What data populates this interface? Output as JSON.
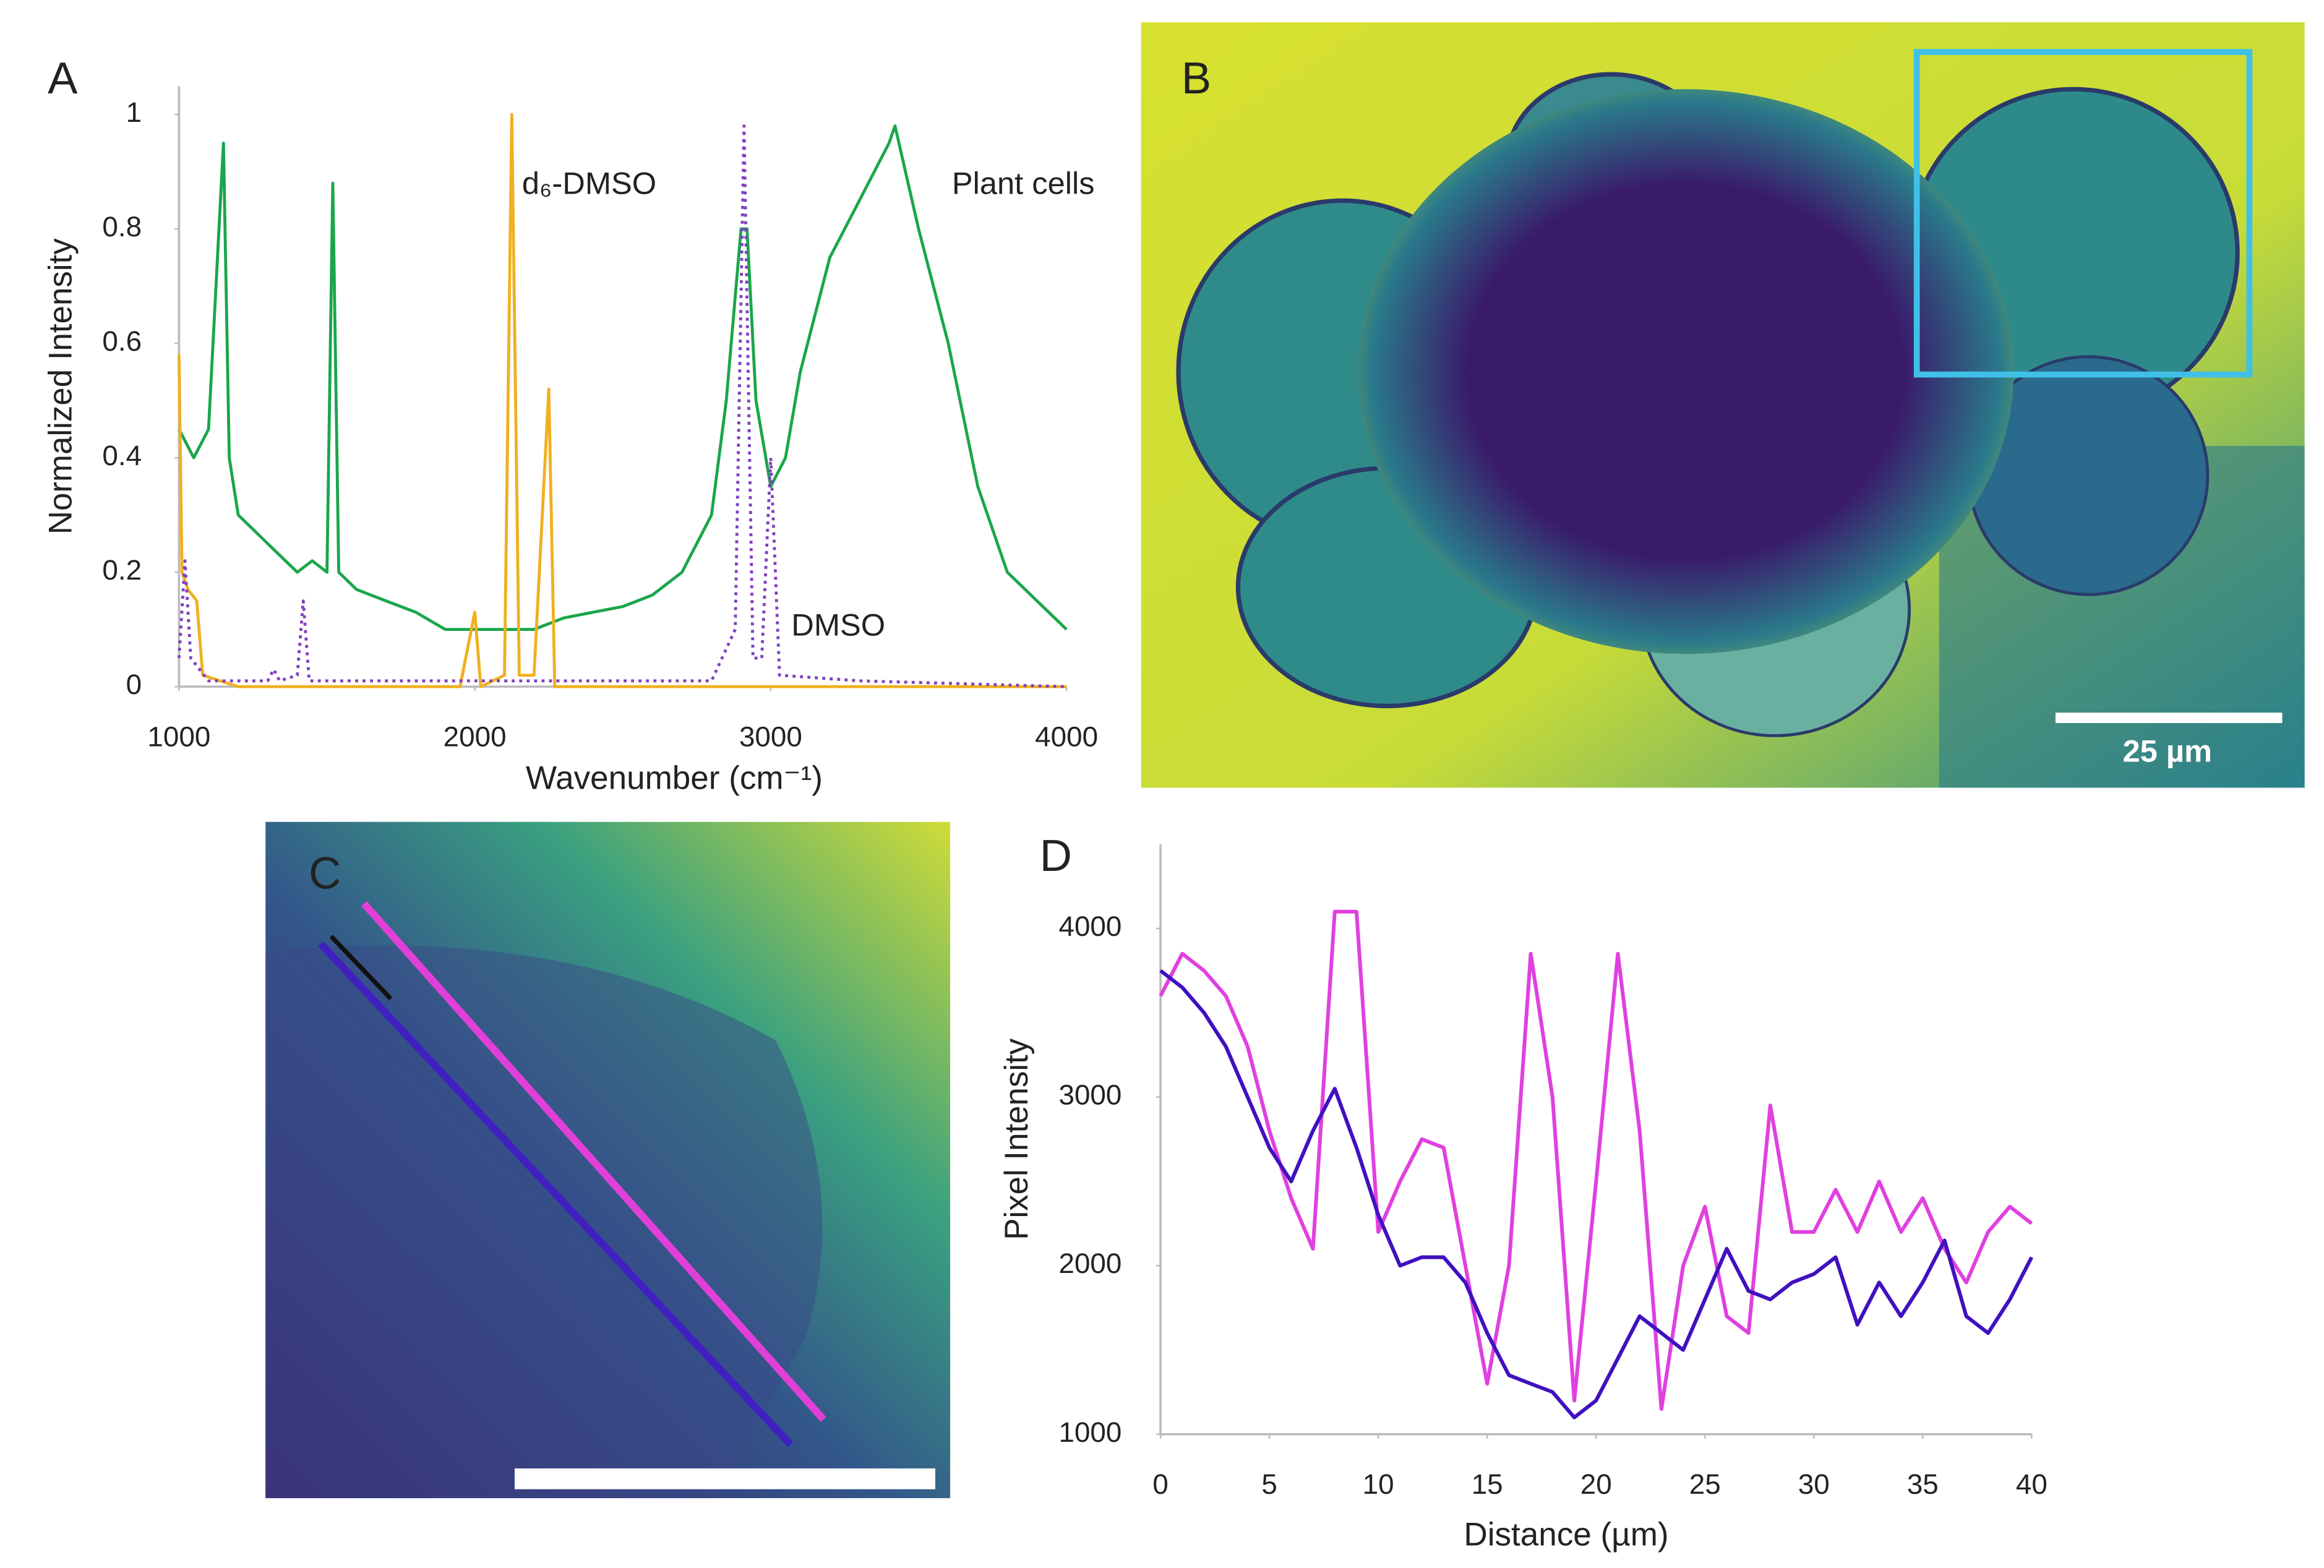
{
  "chart_data": [
    {
      "type": "line",
      "xlabel": "Wavenumber  (cm⁻¹)",
      "ylabel": "Normalized Intensity",
      "xlim": [
        1000,
        4000
      ],
      "xticks": [
        1000,
        2000,
        3000,
        4000
      ],
      "ylim": [
        0,
        1
      ],
      "yticks": [
        0,
        0.2,
        0.4,
        0.6,
        0.8,
        1
      ],
      "annotations": [
        "d₆-DMSO",
        "Plant cells",
        "DMSO"
      ],
      "series": [
        {
          "color": "#1aa64a",
          "x": [
            1000,
            1050,
            1100,
            1150,
            1170,
            1200,
            1300,
            1400,
            1450,
            1500,
            1520,
            1540,
            1600,
            1700,
            1800,
            1900,
            2000,
            2100,
            2200,
            2300,
            2400,
            2500,
            2600,
            2700,
            2800,
            2850,
            2900,
            2920,
            2950,
            3000,
            3050,
            3100,
            3200,
            3300,
            3400,
            3420,
            3500,
            3600,
            3700,
            3800,
            3900,
            4000
          ],
          "values": [
            0.45,
            0.4,
            0.45,
            0.95,
            0.4,
            0.3,
            0.25,
            0.2,
            0.22,
            0.2,
            0.88,
            0.2,
            0.17,
            0.15,
            0.13,
            0.1,
            0.1,
            0.1,
            0.1,
            0.12,
            0.13,
            0.14,
            0.16,
            0.2,
            0.3,
            0.5,
            0.8,
            0.8,
            0.5,
            0.35,
            0.4,
            0.55,
            0.75,
            0.85,
            0.95,
            0.98,
            0.8,
            0.6,
            0.35,
            0.2,
            0.15,
            0.1
          ]
        },
        {
          "color": "#f0b020",
          "x": [
            1000,
            1010,
            1030,
            1060,
            1080,
            1200,
            1950,
            2000,
            2020,
            2100,
            2125,
            2150,
            2200,
            2250,
            2270,
            4000
          ],
          "values": [
            0.58,
            0.2,
            0.17,
            0.15,
            0.02,
            0,
            0,
            0.13,
            0,
            0.02,
            1,
            0.02,
            0.02,
            0.52,
            0,
            0
          ]
        },
        {
          "color": "#8040c0",
          "style": "dotted",
          "x": [
            1000,
            1020,
            1040,
            1100,
            1300,
            1320,
            1340,
            1400,
            1420,
            1440,
            2800,
            2880,
            2910,
            2940,
            2970,
            3000,
            3030,
            3300,
            4000
          ],
          "values": [
            0.05,
            0.22,
            0.05,
            0.01,
            0.01,
            0.03,
            0.01,
            0.02,
            0.15,
            0.01,
            0.01,
            0.1,
            0.98,
            0.05,
            0.05,
            0.4,
            0.02,
            0.01,
            0
          ]
        }
      ]
    },
    {
      "type": "line",
      "xlabel": "Distance (µm)",
      "ylabel": "Pixel Intensity",
      "xlim": [
        0,
        40
      ],
      "xticks": [
        0,
        5,
        10,
        15,
        20,
        25,
        30,
        35,
        40
      ],
      "ylim": [
        1000,
        4500
      ],
      "yticks": [
        1000,
        2000,
        3000,
        4000
      ],
      "x": [
        0,
        1,
        2,
        3,
        4,
        5,
        6,
        7,
        8,
        9,
        10,
        11,
        12,
        13,
        14,
        15,
        16,
        17,
        18,
        19,
        20,
        21,
        22,
        23,
        24,
        25,
        26,
        27,
        28,
        29,
        30,
        31,
        32,
        33,
        34,
        35,
        36,
        37,
        38,
        39,
        40
      ],
      "series": [
        {
          "color": "#e040e0",
          "values": [
            3600,
            3850,
            3750,
            3600,
            3300,
            2800,
            2400,
            2100,
            4100,
            4100,
            2200,
            2500,
            2750,
            2700,
            2000,
            1300,
            2000,
            3850,
            3000,
            1200,
            2500,
            3850,
            2800,
            1150,
            2000,
            2350,
            1700,
            1600,
            2950,
            2200,
            2200,
            2450,
            2200,
            2500,
            2200,
            2400,
            2100,
            1900,
            2200,
            2350,
            2250
          ]
        },
        {
          "color": "#4010c0",
          "values": [
            3750,
            3650,
            3500,
            3300,
            3000,
            2700,
            2500,
            2800,
            3050,
            2700,
            2300,
            2000,
            2050,
            2050,
            1900,
            1600,
            1350,
            1300,
            1250,
            1100,
            1200,
            1450,
            1700,
            1600,
            1500,
            1800,
            2100,
            1850,
            1800,
            1900,
            1950,
            2050,
            1650,
            1900,
            1700,
            1900,
            2150,
            1700,
            1600,
            1800,
            2050
          ]
        }
      ]
    }
  ],
  "panels": {
    "labels": [
      "A",
      "B",
      "C",
      "D"
    ],
    "scale_bar": "25 µm"
  }
}
